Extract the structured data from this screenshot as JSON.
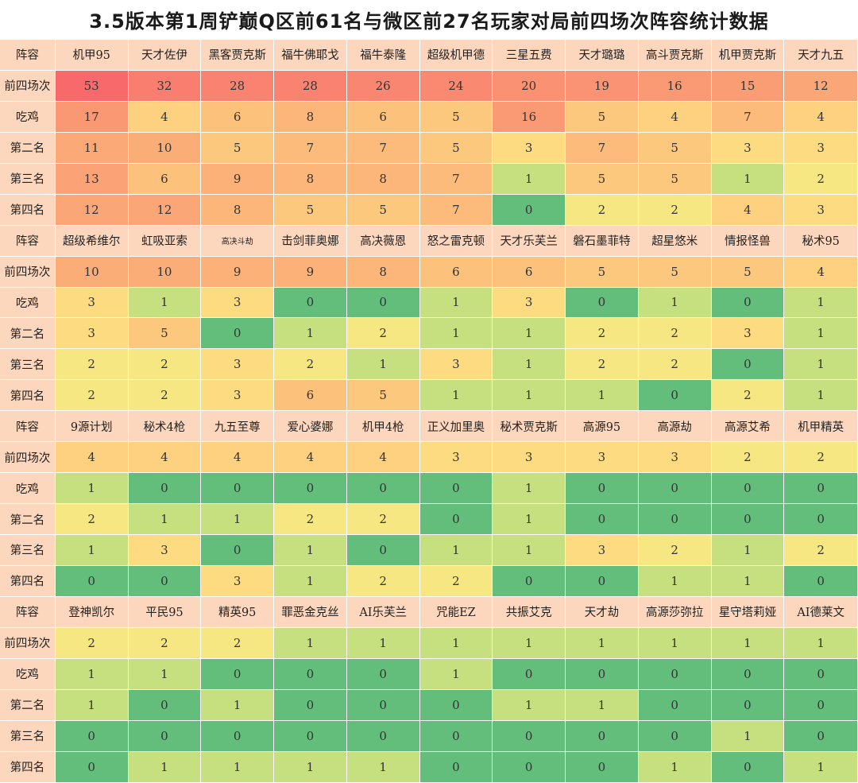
{
  "title": "3.5版本第1周铲巅Q区前61名与微区前27名玩家对局前四场次阵容统计数据",
  "chart_data": {
    "type": "table",
    "title": "3.5版本第1周铲巅Q区前61名与微区前27名玩家对局前四场次阵容统计数据",
    "header_label": "阵容",
    "row_labels": [
      "前四场次",
      "吃鸡",
      "第二名",
      "第三名",
      "第四名"
    ],
    "blocks": [
      {
        "compositions": [
          "机甲95",
          "天才佐伊",
          "黑客贾克斯",
          "福牛佛耶戈",
          "福牛泰隆",
          "超级机甲德",
          "三星五费",
          "天才璐璐",
          "高斗贾克斯",
          "机甲贾克斯",
          "天才九五"
        ],
        "rows": [
          [
            53,
            32,
            28,
            28,
            26,
            24,
            20,
            19,
            16,
            15,
            12
          ],
          [
            17,
            4,
            6,
            8,
            6,
            5,
            16,
            5,
            4,
            7,
            4
          ],
          [
            11,
            10,
            5,
            7,
            7,
            5,
            3,
            7,
            5,
            3,
            3
          ],
          [
            13,
            6,
            9,
            8,
            8,
            7,
            1,
            5,
            5,
            1,
            2
          ],
          [
            12,
            12,
            8,
            5,
            5,
            7,
            0,
            2,
            2,
            4,
            3
          ]
        ]
      },
      {
        "compositions": [
          "超级希维尔",
          "虹吸亚索",
          "高决斗劫",
          "击剑菲奥娜",
          "高决薇恩",
          "怒之雷克顿",
          "天才乐芙兰",
          "磐石墨菲特",
          "超星悠米",
          "情报怪兽",
          "秘术95"
        ],
        "rows": [
          [
            10,
            10,
            9,
            9,
            8,
            6,
            6,
            5,
            5,
            5,
            4
          ],
          [
            3,
            1,
            3,
            0,
            0,
            1,
            3,
            0,
            1,
            0,
            1
          ],
          [
            3,
            5,
            0,
            1,
            2,
            1,
            1,
            2,
            2,
            3,
            1
          ],
          [
            2,
            2,
            3,
            2,
            1,
            3,
            1,
            2,
            2,
            0,
            1
          ],
          [
            2,
            2,
            3,
            6,
            5,
            1,
            1,
            1,
            0,
            2,
            1
          ]
        ]
      },
      {
        "compositions": [
          "9源计划",
          "秘术4枪",
          "九五至尊",
          "爱心婆娜",
          "机甲4枪",
          "正义加里奥",
          "秘术贾克斯",
          "高源95",
          "高源劫",
          "高源艾希",
          "机甲精英"
        ],
        "rows": [
          [
            4,
            4,
            4,
            4,
            4,
            3,
            3,
            3,
            3,
            2,
            2
          ],
          [
            1,
            0,
            0,
            0,
            0,
            0,
            1,
            0,
            0,
            0,
            0
          ],
          [
            2,
            1,
            1,
            2,
            2,
            0,
            1,
            0,
            0,
            0,
            0
          ],
          [
            1,
            3,
            0,
            1,
            0,
            1,
            1,
            3,
            2,
            1,
            2
          ],
          [
            0,
            0,
            3,
            1,
            2,
            2,
            0,
            0,
            1,
            1,
            0
          ]
        ]
      },
      {
        "compositions": [
          "登神凯尔",
          "平民95",
          "精英95",
          "罪恶金克丝",
          "AI乐芙兰",
          "咒能EZ",
          "共振艾克",
          "天才劫",
          "高源莎弥拉",
          "星守塔莉娅",
          "AI德莱文"
        ],
        "rows": [
          [
            2,
            2,
            2,
            1,
            1,
            1,
            1,
            1,
            1,
            1,
            1
          ],
          [
            1,
            1,
            0,
            0,
            0,
            1,
            0,
            0,
            0,
            0,
            0
          ],
          [
            1,
            0,
            1,
            0,
            0,
            0,
            1,
            1,
            0,
            0,
            0
          ],
          [
            0,
            0,
            0,
            0,
            0,
            0,
            0,
            0,
            0,
            1,
            0
          ],
          [
            0,
            1,
            1,
            1,
            1,
            0,
            0,
            0,
            1,
            0,
            1
          ]
        ]
      }
    ],
    "colors": {
      "header_bg": "#fcd7bd",
      "green": "#63be7b",
      "light_green": "#c6df7f",
      "yellow": "#fee883",
      "orange": "#fbaa77",
      "red": "#f8696b"
    }
  }
}
